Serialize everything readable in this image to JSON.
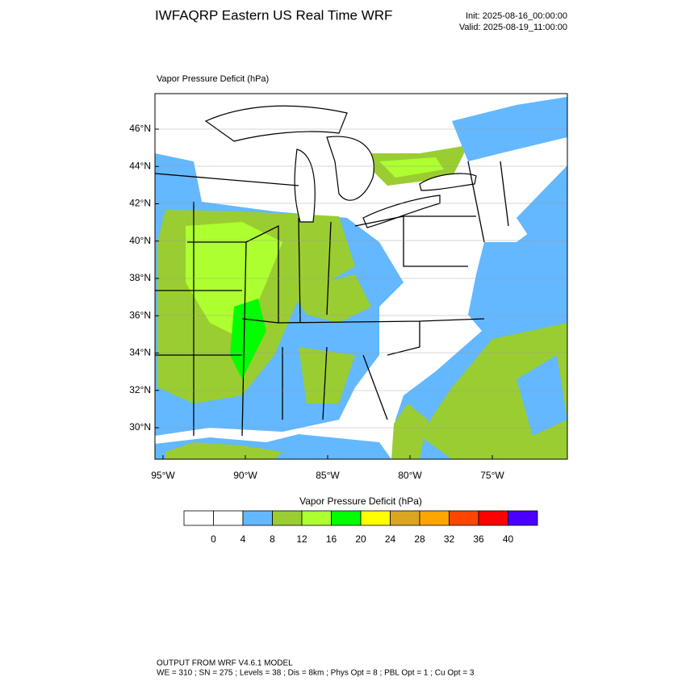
{
  "header": {
    "title": "IWFAQRP Eastern US Real Time WRF",
    "init": "Init: 2025-08-16_00:00:00",
    "valid": "Valid: 2025-08-19_11:00:00"
  },
  "map": {
    "label": "Vapor Pressure Deficit   (hPa)",
    "lat_labels": [
      "46°N",
      "44°N",
      "42°N",
      "40°N",
      "38°N",
      "36°N",
      "34°N",
      "32°N",
      "30°N"
    ],
    "lon_labels": [
      "95°W",
      "90°W",
      "85°W",
      "80°W",
      "75°W"
    ]
  },
  "colorbar": {
    "title": "Vapor Pressure Deficit  (hPa)",
    "colors": [
      "#ffffff",
      "#ffffff",
      "#63b8ff",
      "#9acd32",
      "#adff2f",
      "#00ff00",
      "#ffff00",
      "#daa520",
      "#ffa500",
      "#ff4500",
      "#ff0000",
      "#4b00ff"
    ],
    "labels": [
      0,
      4,
      8,
      12,
      16,
      20,
      24,
      28,
      32,
      36,
      40
    ]
  },
  "footer": {
    "line1": "OUTPUT FROM WRF V4.6.1 MODEL",
    "line2": "WE = 310 ; SN = 275 ; Levels = 38 ; Dis = 8km ; Phys Opt = 8 ; PBL Opt = 1 ; Cu Opt = 3"
  }
}
